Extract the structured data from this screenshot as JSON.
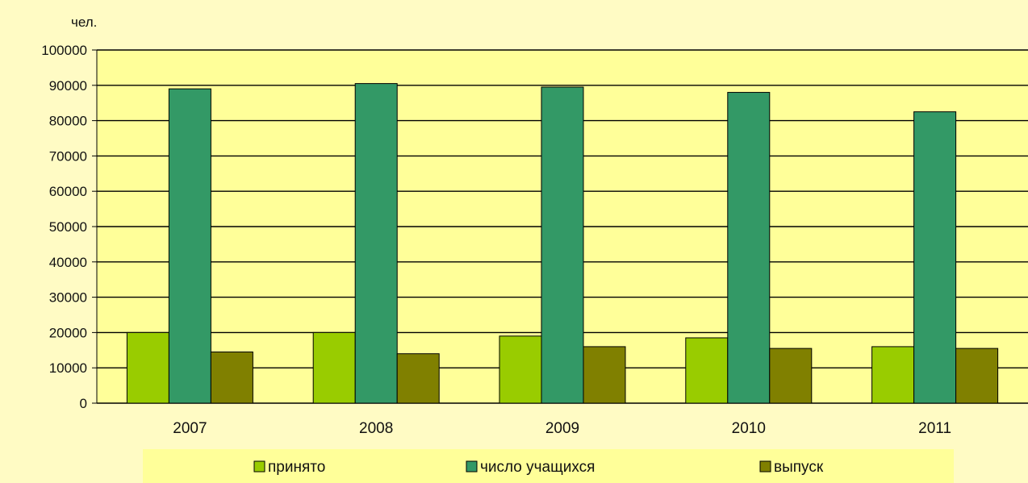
{
  "chart_data": {
    "type": "bar",
    "ylabel": "чел.",
    "xlabel": "",
    "ylim": [
      0,
      100000
    ],
    "ytick_step": 10000,
    "grid": true,
    "legend_position": "bottom",
    "categories": [
      "2007",
      "2008",
      "2009",
      "2010",
      "2011"
    ],
    "series": [
      {
        "name": "принято",
        "color": "#99cc00",
        "values": [
          20000,
          20000,
          19000,
          18500,
          16000
        ]
      },
      {
        "name": "число учащихся",
        "color": "#339966",
        "values": [
          89000,
          90500,
          89500,
          88000,
          82500
        ]
      },
      {
        "name": "выпуск",
        "color": "#808000",
        "values": [
          14500,
          14000,
          16000,
          15500,
          15500
        ]
      }
    ]
  },
  "colors": {
    "plot_background": "#ffff99",
    "page_background": "#fffbc4",
    "legend_background": "#ffff99",
    "gridline": "#000000"
  }
}
